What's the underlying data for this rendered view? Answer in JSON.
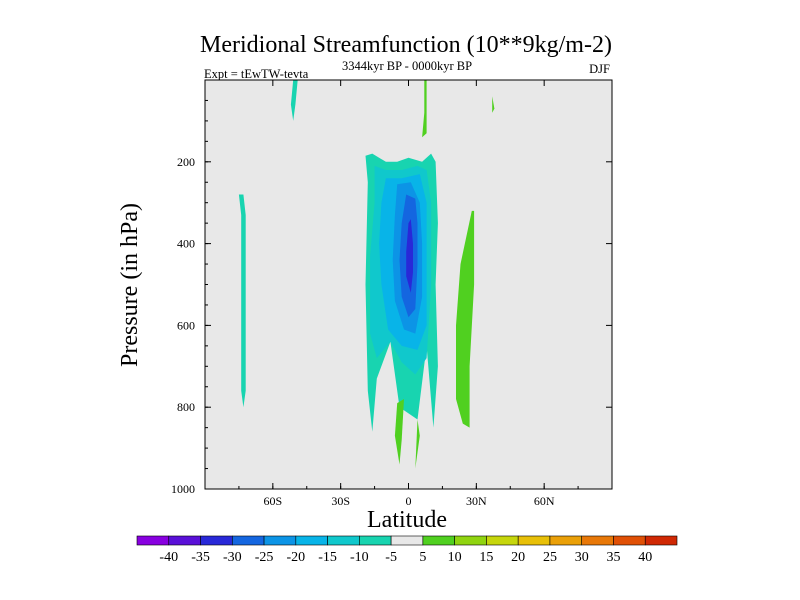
{
  "chart_data": {
    "type": "contour",
    "title": "Meridional Streamfunction (10**9kg/m-2)",
    "subtitle_left": "Expt = tEwTW-tevta",
    "subtitle_center": "3344kyr BP - 0000kyr BP",
    "subtitle_right": "DJF",
    "xlabel": "Latitude",
    "ylabel": "Pressure (in hPa)",
    "xlim": [
      -90,
      90
    ],
    "ylim": [
      1000,
      0
    ],
    "x_ticks": [
      {
        "value": -60,
        "label": "60S"
      },
      {
        "value": -30,
        "label": "30S"
      },
      {
        "value": 0,
        "label": "0"
      },
      {
        "value": 30,
        "label": "30N"
      },
      {
        "value": 60,
        "label": "60N"
      }
    ],
    "y_ticks": [
      {
        "value": 200,
        "label": "200"
      },
      {
        "value": 400,
        "label": "400"
      },
      {
        "value": 600,
        "label": "600"
      },
      {
        "value": 800,
        "label": "800"
      },
      {
        "value": 1000,
        "label": "1000"
      }
    ],
    "background_color": "#e8e8e8",
    "colorbar": {
      "levels": [
        "-40",
        "-35",
        "-30",
        "-25",
        "-20",
        "-15",
        "-10",
        "-5",
        "5",
        "10",
        "15",
        "20",
        "25",
        "30",
        "35",
        "40"
      ],
      "colors": [
        "#8800e0",
        "#5a10d8",
        "#2828d8",
        "#1466e0",
        "#0c94e6",
        "#08b4e8",
        "#10c8cc",
        "#18d4b0",
        "#e8e8e8",
        "#50d020",
        "#90d410",
        "#c6d60c",
        "#e8c008",
        "#eaa008",
        "#e87808",
        "#e05006",
        "#d02804"
      ]
    },
    "regions": [
      {
        "label": "-5",
        "color": "#18d4b0",
        "points": [
          [
            -75,
            280
          ],
          [
            -74,
            330
          ],
          [
            -74,
            760
          ],
          [
            -73,
            800
          ],
          [
            -72,
            760
          ],
          [
            -72,
            330
          ],
          [
            -73,
            280
          ]
        ]
      },
      {
        "label": "-5",
        "color": "#18d4b0",
        "points": [
          [
            -51,
            0
          ],
          [
            -52,
            60
          ],
          [
            -51,
            100
          ],
          [
            -50,
            60
          ],
          [
            -49,
            0
          ]
        ]
      },
      {
        "label": "-5",
        "color": "#18d4b0",
        "points": [
          [
            -19,
            185
          ],
          [
            -18,
            250
          ],
          [
            -19,
            500
          ],
          [
            -18,
            760
          ],
          [
            -16,
            860
          ],
          [
            -14,
            730
          ],
          [
            -8,
            640
          ],
          [
            -4,
            800
          ],
          [
            4,
            830
          ],
          [
            8,
            650
          ],
          [
            11,
            850
          ],
          [
            13,
            700
          ],
          [
            12,
            500
          ],
          [
            13,
            350
          ],
          [
            12,
            200
          ],
          [
            10,
            180
          ],
          [
            6,
            200
          ],
          [
            0,
            190
          ],
          [
            -5,
            200
          ],
          [
            -10,
            200
          ],
          [
            -16,
            180
          ]
        ]
      },
      {
        "label": "-10",
        "color": "#10c8cc",
        "points": [
          [
            -15,
            210
          ],
          [
            -15,
            300
          ],
          [
            -17,
            430
          ],
          [
            -17,
            620
          ],
          [
            -14,
            680
          ],
          [
            -8,
            640
          ],
          [
            -3,
            690
          ],
          [
            3,
            720
          ],
          [
            8,
            680
          ],
          [
            10,
            500
          ],
          [
            10,
            300
          ],
          [
            8,
            220
          ],
          [
            4,
            210
          ],
          [
            -3,
            220
          ],
          [
            -10,
            220
          ]
        ]
      },
      {
        "label": "-15",
        "color": "#08b4e8",
        "points": [
          [
            -10,
            240
          ],
          [
            -12,
            300
          ],
          [
            -13,
            400
          ],
          [
            -12,
            500
          ],
          [
            -9,
            610
          ],
          [
            -3,
            650
          ],
          [
            4,
            660
          ],
          [
            8,
            600
          ],
          [
            8,
            450
          ],
          [
            8,
            300
          ],
          [
            5,
            230
          ],
          [
            -3,
            240
          ]
        ]
      },
      {
        "label": "-20",
        "color": "#0c94e6",
        "points": [
          [
            -5,
            255
          ],
          [
            -6,
            330
          ],
          [
            -7,
            440
          ],
          [
            -6,
            540
          ],
          [
            -2,
            610
          ],
          [
            3,
            620
          ],
          [
            6,
            530
          ],
          [
            6,
            400
          ],
          [
            5,
            300
          ],
          [
            1,
            250
          ]
        ]
      },
      {
        "label": "-25",
        "color": "#1466e0",
        "points": [
          [
            -1,
            280
          ],
          [
            -3,
            350
          ],
          [
            -4,
            440
          ],
          [
            -3,
            530
          ],
          [
            0,
            580
          ],
          [
            3,
            560
          ],
          [
            4,
            450
          ],
          [
            4,
            350
          ],
          [
            3,
            290
          ]
        ]
      },
      {
        "label": "-30",
        "color": "#2828d8",
        "points": [
          [
            0,
            350
          ],
          [
            -1,
            420
          ],
          [
            -1,
            480
          ],
          [
            1,
            520
          ],
          [
            2,
            470
          ],
          [
            2,
            400
          ],
          [
            1,
            340
          ]
        ]
      },
      {
        "label": "5",
        "color": "#50d020",
        "points": [
          [
            7,
            0
          ],
          [
            7,
            80
          ],
          [
            6,
            140
          ],
          [
            8,
            130
          ],
          [
            8,
            0
          ]
        ]
      },
      {
        "label": "5",
        "color": "#50d020",
        "points": [
          [
            37,
            40
          ],
          [
            37,
            80
          ],
          [
            38,
            70
          ]
        ]
      },
      {
        "label": "5",
        "color": "#50d020",
        "points": [
          [
            -5,
            790
          ],
          [
            -6,
            870
          ],
          [
            -4,
            940
          ],
          [
            -3,
            880
          ],
          [
            -2,
            780
          ]
        ]
      },
      {
        "label": "5",
        "color": "#50d020",
        "points": [
          [
            4,
            830
          ],
          [
            3,
            950
          ],
          [
            5,
            870
          ]
        ]
      },
      {
        "label": "5",
        "color": "#50d020",
        "points": [
          [
            28,
            320
          ],
          [
            23,
            450
          ],
          [
            21,
            600
          ],
          [
            21,
            780
          ],
          [
            24,
            840
          ],
          [
            27,
            850
          ],
          [
            27,
            700
          ],
          [
            29,
            500
          ],
          [
            29,
            320
          ]
        ]
      }
    ]
  }
}
